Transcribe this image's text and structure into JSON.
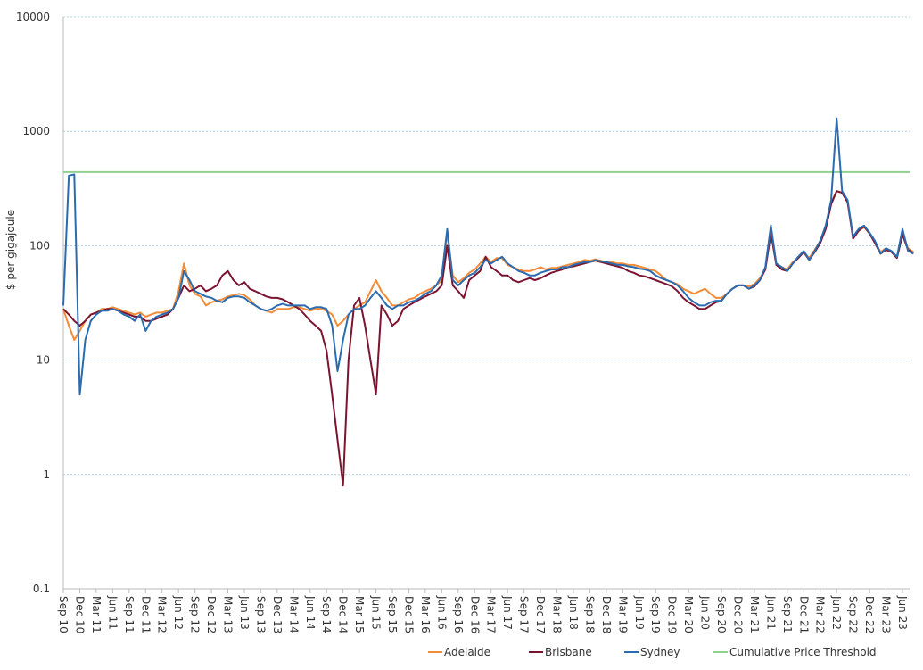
{
  "chart_data": {
    "type": "line",
    "y_label": "$ per gigajoule",
    "log_scale": true,
    "grid": true,
    "legend": "bottom",
    "ylim": [
      0.1,
      10000
    ],
    "yticks": [
      0.1,
      1,
      10,
      100,
      1000,
      10000
    ],
    "categories": [
      "Sep 10",
      null,
      null,
      "Dec 10",
      null,
      null,
      "Mar 11",
      null,
      null,
      "Jun 11",
      null,
      null,
      "Sep 11",
      null,
      null,
      "Dec 11",
      null,
      null,
      "Mar 12",
      null,
      null,
      "Jun 12",
      null,
      null,
      "Sep 12",
      null,
      null,
      "Dec 12",
      null,
      null,
      "Mar 13",
      null,
      null,
      "Jun 13",
      null,
      null,
      "Sep 13",
      null,
      null,
      "Dec 13",
      null,
      null,
      "Mar 14",
      null,
      null,
      "Jun 14",
      null,
      null,
      "Sep 14",
      null,
      null,
      "Dec 14",
      null,
      null,
      "Mar 15",
      null,
      null,
      "Jun 15",
      null,
      null,
      "Sep 15",
      null,
      null,
      "Dec 15",
      null,
      null,
      "Mar 16",
      null,
      null,
      "Jun 16",
      null,
      null,
      "Sep 16",
      null,
      null,
      "Dec 16",
      null,
      null,
      "Mar 17",
      null,
      null,
      "Jun 17",
      null,
      null,
      "Sep 17",
      null,
      null,
      "Dec 17",
      null,
      null,
      "Mar 18",
      null,
      null,
      "Jun 18",
      null,
      null,
      "Sep 18",
      null,
      null,
      "Dec 18",
      null,
      null,
      "Mar 19",
      null,
      null,
      "Jun 19",
      null,
      null,
      "Sep 19",
      null,
      null,
      "Dec 19",
      null,
      null,
      "Mar 20",
      null,
      null,
      "Jun 20",
      null,
      null,
      "Sep 20",
      null,
      null,
      "Dec 20",
      null,
      null,
      "Mar 21",
      null,
      null,
      "Jun 21",
      null,
      null,
      "Sep 21",
      null,
      null,
      "Dec 21",
      null,
      null,
      "Mar 22",
      null,
      null,
      "Jun 22",
      null,
      null,
      "Sep 22",
      null,
      null,
      "Dec 22",
      null,
      null,
      "Mar 23",
      null,
      null,
      "Jun 23",
      null,
      null
    ],
    "series": [
      {
        "name": "Adelaide",
        "color": "#f28c38",
        "values": [
          28,
          20,
          15,
          18,
          22,
          25,
          26,
          28,
          28,
          29,
          28,
          27,
          26,
          25,
          26,
          24,
          25,
          26,
          26,
          27,
          28,
          40,
          70,
          45,
          38,
          36,
          30,
          32,
          33,
          34,
          36,
          37,
          38,
          37,
          34,
          30,
          28,
          27,
          26,
          28,
          28,
          28,
          29,
          29,
          28,
          27,
          28,
          28,
          27,
          25,
          20,
          22,
          25,
          28,
          30,
          32,
          40,
          50,
          40,
          35,
          30,
          30,
          32,
          34,
          35,
          38,
          40,
          42,
          45,
          50,
          130,
          55,
          48,
          52,
          58,
          62,
          70,
          80,
          72,
          78,
          78,
          68,
          65,
          62,
          60,
          60,
          62,
          65,
          62,
          64,
          64,
          66,
          68,
          70,
          72,
          75,
          74,
          76,
          74,
          72,
          72,
          70,
          70,
          68,
          68,
          66,
          64,
          62,
          60,
          55,
          50,
          48,
          46,
          42,
          40,
          38,
          40,
          42,
          38,
          35,
          35,
          38,
          42,
          45,
          45,
          44,
          46,
          52,
          62,
          130,
          70,
          65,
          62,
          72,
          78,
          88,
          78,
          92,
          110,
          145,
          240,
          300,
          290,
          240,
          120,
          135,
          145,
          128,
          108,
          88,
          95,
          88,
          80,
          130,
          95,
          88
        ]
      },
      {
        "name": "Brisbane",
        "color": "#7b1430",
        "values": [
          28,
          25,
          22,
          20,
          22,
          25,
          26,
          27,
          28,
          28,
          27,
          26,
          25,
          24,
          24,
          22,
          22,
          23,
          24,
          25,
          28,
          35,
          45,
          40,
          42,
          45,
          40,
          42,
          45,
          55,
          60,
          50,
          45,
          48,
          42,
          40,
          38,
          36,
          35,
          35,
          34,
          32,
          30,
          28,
          25,
          22,
          20,
          18,
          12,
          5,
          2,
          0.8,
          10,
          30,
          35,
          20,
          10,
          5,
          30,
          25,
          20,
          22,
          28,
          30,
          32,
          34,
          36,
          38,
          40,
          45,
          100,
          45,
          40,
          35,
          50,
          55,
          60,
          80,
          65,
          60,
          55,
          55,
          50,
          48,
          50,
          52,
          50,
          52,
          55,
          58,
          60,
          62,
          65,
          66,
          68,
          70,
          72,
          74,
          72,
          70,
          68,
          66,
          64,
          60,
          58,
          55,
          54,
          52,
          50,
          48,
          46,
          44,
          40,
          35,
          32,
          30,
          28,
          28,
          30,
          32,
          33,
          38,
          42,
          45,
          45,
          42,
          44,
          50,
          62,
          130,
          68,
          62,
          60,
          70,
          78,
          88,
          75,
          88,
          105,
          140,
          230,
          300,
          290,
          240,
          115,
          135,
          148,
          128,
          105,
          85,
          92,
          88,
          78,
          125,
          92,
          86
        ]
      },
      {
        "name": "Sydney",
        "color": "#2b6cb0",
        "values": [
          30,
          410,
          420,
          5,
          15,
          22,
          25,
          27,
          27,
          28,
          27,
          25,
          24,
          22,
          25,
          18,
          22,
          24,
          25,
          26,
          28,
          35,
          60,
          50,
          40,
          38,
          36,
          35,
          33,
          32,
          35,
          36,
          36,
          35,
          32,
          30,
          28,
          27,
          28,
          30,
          31,
          30,
          30,
          30,
          30,
          28,
          29,
          29,
          28,
          20,
          8,
          15,
          25,
          28,
          28,
          30,
          35,
          40,
          35,
          30,
          28,
          30,
          30,
          32,
          33,
          35,
          38,
          40,
          45,
          55,
          140,
          50,
          45,
          50,
          55,
          58,
          65,
          75,
          70,
          75,
          80,
          70,
          65,
          60,
          58,
          55,
          55,
          58,
          60,
          62,
          62,
          65,
          65,
          68,
          70,
          72,
          72,
          75,
          73,
          72,
          70,
          68,
          68,
          66,
          65,
          63,
          62,
          60,
          55,
          52,
          50,
          48,
          45,
          40,
          35,
          32,
          30,
          30,
          32,
          33,
          33,
          38,
          42,
          45,
          45,
          42,
          45,
          50,
          65,
          150,
          70,
          65,
          60,
          70,
          80,
          90,
          75,
          90,
          110,
          150,
          250,
          1300,
          300,
          250,
          120,
          140,
          150,
          130,
          110,
          85,
          95,
          90,
          80,
          140,
          90,
          85
        ]
      }
    ],
    "threshold": {
      "name": "Cumulative Price Threshold",
      "value": 440,
      "color": "#8fd18f"
    }
  }
}
